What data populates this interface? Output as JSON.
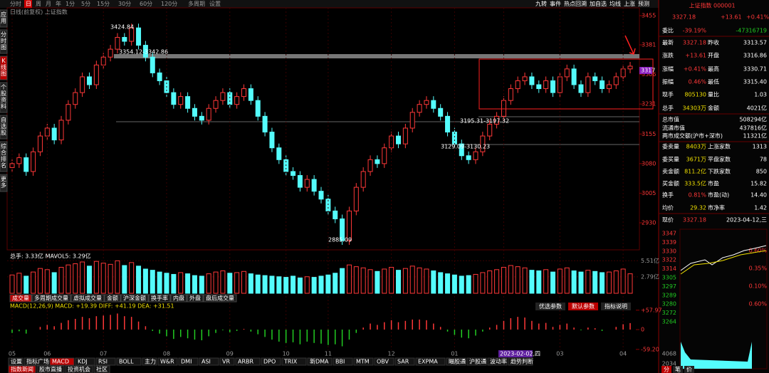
{
  "toolbar": {
    "left": [
      "分时",
      "日",
      "周",
      "月",
      "年",
      "1分",
      "5分",
      "15分",
      "30分",
      "60分",
      "120分",
      "多周期",
      "设置"
    ],
    "right": [
      "九转",
      "事件",
      "热点回溯",
      "加自选",
      "均线",
      "上涨",
      "预测"
    ]
  },
  "side_tabs": [
    "应用",
    "分时图",
    "K线图",
    "个股资料",
    "自选股",
    "综合排名",
    "更多"
  ],
  "kline": {
    "title": "日线(前复权) 上证指数",
    "yticks": [
      3455,
      3381,
      3306,
      3231,
      3155,
      3080,
      3005,
      2930
    ],
    "annotations": [
      "3424.84",
      "3354.12-3342.86",
      "3195.31-3197.32",
      "3129.09-3130.23",
      "2885.09"
    ],
    "last_badge": "3317",
    "closes": [
      3080,
      3095,
      3060,
      3110,
      3150,
      3170,
      3140,
      3190,
      3230,
      3260,
      3300,
      3280,
      3330,
      3350,
      3370,
      3400,
      3390,
      3424,
      3380,
      3350,
      3310,
      3290,
      3260,
      3230,
      3250,
      3220,
      3200,
      3190,
      3220,
      3240,
      3260,
      3230,
      3250,
      3270,
      3240,
      3200,
      3160,
      3120,
      3090,
      3060,
      3050,
      3020,
      3040,
      3010,
      2990,
      2960,
      2940,
      2885,
      2960,
      3020,
      3060,
      3090,
      3080,
      3120,
      3150,
      3130,
      3170,
      3210,
      3230,
      3240,
      3220,
      3200,
      3160,
      3130,
      3100,
      3090,
      3110,
      3150,
      3180,
      3200,
      3240,
      3270,
      3290,
      3300,
      3280,
      3270,
      3290,
      3260,
      3300,
      3320,
      3280,
      3260,
      3300,
      3290,
      3270,
      3280,
      3300,
      3320,
      3327
    ],
    "categories": [
      "05",
      null,
      null,
      null,
      null,
      "06",
      null,
      null,
      null,
      null,
      null,
      null,
      null,
      "07",
      null,
      null,
      null,
      null,
      null,
      null,
      null,
      null,
      "08",
      null,
      null,
      null,
      null,
      null,
      null,
      null,
      null,
      "09",
      null,
      null,
      null,
      null,
      null,
      null,
      null,
      "10",
      null,
      null,
      null,
      null,
      null,
      "11",
      null,
      null,
      null,
      null,
      null,
      null,
      null,
      null,
      "12",
      null,
      null,
      null,
      null,
      null,
      null,
      null,
      null,
      "01",
      null,
      null,
      null,
      null,
      null,
      null,
      "02",
      null,
      null,
      null,
      null,
      null,
      null,
      null,
      "03",
      null,
      null,
      null,
      null,
      null,
      null,
      null,
      null,
      "04",
      null
    ],
    "cursor_date": "2023-02-02,四"
  },
  "volume": {
    "label": "总手: 3.33亿  MAVOL5: 3.29亿",
    "yticks": [
      {
        "value": 5.51,
        "label": "5.51亿"
      },
      {
        "value": 2.79,
        "label": "2.79亿"
      }
    ],
    "values": [
      3.1,
      3.4,
      2.9,
      3.6,
      4.2,
      4.0,
      3.5,
      4.4,
      4.8,
      5.0,
      5.3,
      4.6,
      5.4,
      5.1,
      4.9,
      5.5,
      4.7,
      5.2,
      4.6,
      4.1,
      3.9,
      3.6,
      3.4,
      3.2,
      3.5,
      3.3,
      3.0,
      2.9,
      3.3,
      3.6,
      3.8,
      3.4,
      3.5,
      3.7,
      3.3,
      3.1,
      3.0,
      2.9,
      2.8,
      2.7,
      2.9,
      2.6,
      2.8,
      2.7,
      2.9,
      3.1,
      3.4,
      4.2,
      4.8,
      4.5,
      4.3,
      4.0,
      3.7,
      4.1,
      4.4,
      3.9,
      4.2,
      4.6,
      4.3,
      4.1,
      3.8,
      3.5,
      3.3,
      3.1,
      2.9,
      3.0,
      3.2,
      3.5,
      3.8,
      4.0,
      4.4,
      4.7,
      4.5,
      4.3,
      3.9,
      3.8,
      4.0,
      3.6,
      4.1,
      4.3,
      3.8,
      3.6,
      3.9,
      3.7,
      3.5,
      3.6,
      3.8,
      4.1,
      3.3
    ]
  },
  "volume_tabs": [
    "成交量",
    "多周期成交量",
    "虚拟成交量",
    "金额",
    "沪深金额",
    "换手率",
    "内盘",
    "外盘",
    "盘后成交量"
  ],
  "macd": {
    "label": "MACD(12,26,9)  MACD: +19.39  DIFF: +41.19  DEA: +31.51",
    "buttons": [
      "优选参数",
      "默认参数",
      "指标说明"
    ],
    "yticks": [
      {
        "value": 57.97,
        "label": "+57.97"
      },
      0,
      {
        "value": -59.2,
        "label": "-59.20"
      }
    ],
    "values": [
      -10,
      -5,
      -12,
      0,
      8,
      14,
      10,
      20,
      28,
      32,
      38,
      34,
      40,
      42,
      44,
      48,
      40,
      38,
      24,
      10,
      -4,
      -12,
      -20,
      -28,
      -22,
      -26,
      -30,
      -32,
      -20,
      -10,
      -2,
      -8,
      -4,
      2,
      -6,
      -14,
      -22,
      -30,
      -36,
      -40,
      -38,
      -44,
      -36,
      -40,
      -42,
      -46,
      -44,
      -50,
      -30,
      -10,
      6,
      18,
      14,
      22,
      28,
      22,
      26,
      30,
      30,
      28,
      18,
      8,
      -6,
      -16,
      -24,
      -26,
      -18,
      -6,
      6,
      14,
      26,
      34,
      38,
      36,
      26,
      18,
      20,
      8,
      14,
      18,
      6,
      -2,
      6,
      4,
      -4,
      0,
      8,
      16,
      19.39
    ]
  },
  "indicator_tabs": [
    "设置",
    "指标广场",
    "MACD",
    "KDJ",
    "RSI",
    "BOLL",
    "主力",
    "W&R",
    "DMI",
    "ASI",
    "VR",
    "ARBR",
    "DPO",
    "TRIX",
    "新DMA",
    "BBI",
    "MTM",
    "OBV",
    "SAR",
    "EXPMA",
    "瞄股通",
    "沪股通",
    "波动率",
    "趋势判断"
  ],
  "bottom_tabs": [
    "指数新闻",
    "股市直播",
    "投资机会",
    "社区"
  ],
  "quote": {
    "name": "上证指数 000001",
    "price": "3327.18",
    "change": "+13.61",
    "pct": "+0.41%",
    "rows": [
      [
        "委比",
        "-39.19%",
        "",
        "-47316719"
      ],
      [
        "最新",
        "3327.18",
        "昨收",
        "3313.57"
      ],
      [
        "涨跌",
        "+13.61",
        "开盘",
        "3316.86"
      ],
      [
        "涨幅",
        "+0.41%",
        "最高",
        "3330.71"
      ],
      [
        "振幅",
        "0.46%",
        "最低",
        "3315.40"
      ],
      [
        "现手",
        "805130",
        "量比",
        "1.03"
      ],
      [
        "总手",
        "34303万",
        "金额",
        "4021亿"
      ],
      [
        "总市值",
        "",
        "",
        "508294亿"
      ],
      [
        "流通市值",
        "",
        "",
        "437816亿"
      ],
      [
        "两市成交额(沪市+深市)",
        "",
        "",
        "11321亿"
      ],
      [
        "委卖量",
        "8403万",
        "上涨家数",
        "1313"
      ],
      [
        "委买量",
        "3671万",
        "平盘家数",
        "78"
      ],
      [
        "卖金额",
        "811.2亿",
        "下跌家数",
        "850"
      ],
      [
        "买金额",
        "333.5亿",
        "市盈",
        "15.82"
      ],
      [
        "换手",
        "0.81%",
        "市盈(动)",
        "14.40"
      ],
      [
        "均价",
        "29.32",
        "市净率",
        "1.42"
      ],
      [
        "现价",
        "3327.18",
        "",
        "2023-04-12,三"
      ]
    ],
    "mini_left": [
      "3347",
      "3339",
      "3330",
      "3322",
      "3314",
      "3305",
      "3297",
      "3289",
      "3280",
      "3272",
      "3264"
    ],
    "mini_right": [
      "0.60%",
      "0.35%",
      "0.10%",
      "0.60%"
    ],
    "mini_vol": [
      "4068",
      "2034"
    ],
    "tabs": [
      "分",
      "笔",
      "价"
    ]
  }
}
